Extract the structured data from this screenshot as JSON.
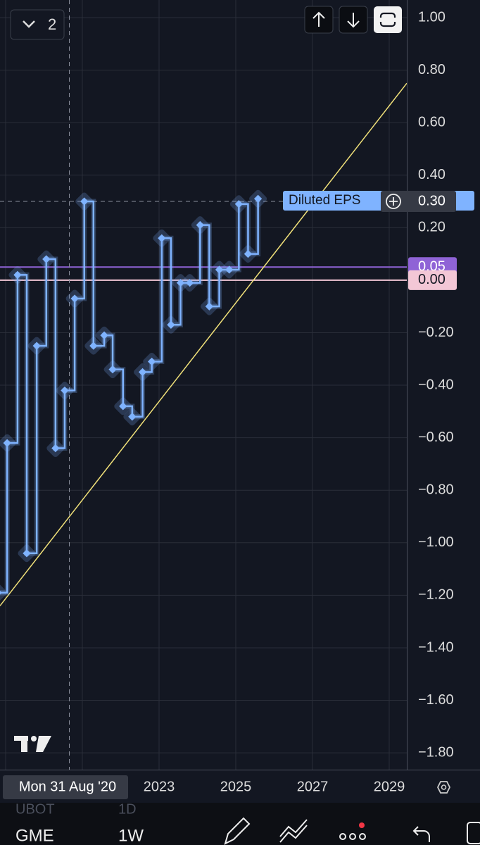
{
  "top_bar": {
    "count": "2"
  },
  "chart_data": {
    "type": "step",
    "series": [
      {
        "name": "Diluted EPS",
        "color": "#7fb3ff",
        "x": [
          2018.8,
          2019.04,
          2019.31,
          2019.55,
          2019.81,
          2020.06,
          2020.3,
          2020.54,
          2020.8,
          2021.05,
          2021.29,
          2021.57,
          2021.79,
          2022.06,
          2022.3,
          2022.57,
          2022.81,
          2023.07,
          2023.31,
          2023.56,
          2023.8,
          2024.07,
          2024.31,
          2024.57,
          2024.83,
          2025.08,
          2025.32,
          2025.58
        ],
        "values": [
          -1.19,
          -0.62,
          0.02,
          -1.04,
          -0.25,
          0.08,
          -0.64,
          -0.42,
          -0.07,
          0.3,
          -0.25,
          -0.21,
          -0.34,
          -0.48,
          -0.52,
          -0.35,
          -0.31,
          0.16,
          -0.17,
          -0.01,
          -0.01,
          0.21,
          -0.1,
          0.04,
          0.04,
          0.29,
          0.1,
          0.31
        ]
      }
    ],
    "xlim": [
      2018.853,
      2029.459
    ],
    "xticks": [
      2023,
      2025,
      2027,
      2029
    ],
    "xgrid": [
      2019,
      2021,
      2023,
      2025,
      2027,
      2029
    ],
    "ylim": [
      -1.864,
      1.067
    ],
    "yticks": [
      {
        "value": 1,
        "label": "1.00"
      },
      {
        "value": 0.8,
        "label": "0.80"
      },
      {
        "value": 0.6,
        "label": "0.60"
      },
      {
        "value": 0.4,
        "label": "0.40"
      },
      {
        "value": 0.2,
        "label": "0.20"
      },
      {
        "value": -0.2,
        "label": "−0.20"
      },
      {
        "value": -0.4,
        "label": "−0.40"
      },
      {
        "value": -0.6,
        "label": "−0.60"
      },
      {
        "value": -0.8,
        "label": "−0.80"
      },
      {
        "value": -1,
        "label": "−1.00"
      },
      {
        "value": -1.2,
        "label": "−1.20"
      },
      {
        "value": -1.4,
        "label": "−1.40"
      },
      {
        "value": -1.6,
        "label": "−1.60"
      },
      {
        "value": -1.8,
        "label": "−1.80"
      }
    ],
    "grid": true,
    "trendline": {
      "color": "#f2e27a",
      "x": [
        2018.853,
        2029.459
      ],
      "values": [
        -1.24,
        0.75
      ]
    },
    "hlines": [
      {
        "value": 0.05,
        "label": "0.05",
        "color": "#8f63d6"
      },
      {
        "value": 0,
        "label": "0.00",
        "color": "#f3c7d6"
      }
    ],
    "crosshair": {
      "x": 2020.66,
      "x_label": "Mon 31 Aug '20",
      "y": 0.3,
      "y_label": "0.30"
    }
  },
  "toolbar": {
    "symbol": "GME",
    "interval": "1W",
    "ghost_symbol": "UBOT",
    "ghost_interval": "1D"
  }
}
